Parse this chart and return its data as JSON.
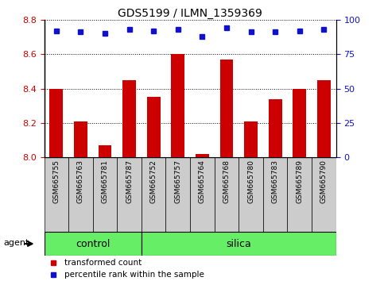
{
  "title": "GDS5199 / ILMN_1359369",
  "samples": [
    "GSM665755",
    "GSM665763",
    "GSM665781",
    "GSM665787",
    "GSM665752",
    "GSM665757",
    "GSM665764",
    "GSM665768",
    "GSM665780",
    "GSM665783",
    "GSM665789",
    "GSM665790"
  ],
  "bar_values": [
    8.4,
    8.21,
    8.07,
    8.45,
    8.35,
    8.6,
    8.02,
    8.57,
    8.21,
    8.34,
    8.4,
    8.45
  ],
  "percentile_values": [
    92,
    91,
    90,
    93,
    92,
    93,
    88,
    94,
    91,
    91,
    92,
    93
  ],
  "bar_color": "#cc0000",
  "dot_color": "#1111cc",
  "ylim_left": [
    8.0,
    8.8
  ],
  "ylim_right": [
    0,
    100
  ],
  "yticks_left": [
    8.0,
    8.2,
    8.4,
    8.6,
    8.8
  ],
  "yticks_right": [
    0,
    25,
    50,
    75,
    100
  ],
  "n_control": 4,
  "n_silica": 8,
  "control_label": "control",
  "silica_label": "silica",
  "agent_label": "agent",
  "legend_bar_label": "transformed count",
  "legend_dot_label": "percentile rank within the sample",
  "bar_width": 0.55,
  "tick_label_color_left": "#cc0000",
  "tick_label_color_right": "#1111cc",
  "group_fill_color": "#66ee66",
  "xticklabel_bg": "#cccccc",
  "title_fontsize": 10,
  "tick_fontsize": 8,
  "label_fontsize": 6.5,
  "group_fontsize": 9,
  "legend_fontsize": 7.5,
  "agent_fontsize": 8
}
